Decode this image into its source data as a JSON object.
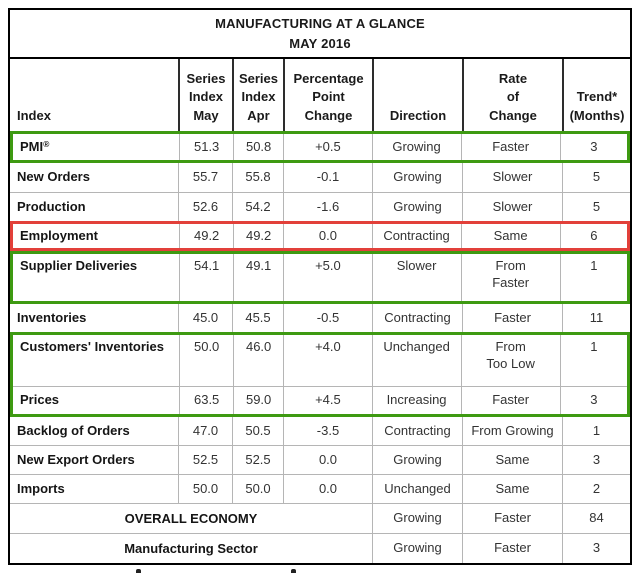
{
  "chart_data": {
    "type": "table",
    "title": "MANUFACTURING AT A GLANCE",
    "subtitle": "MAY 2016",
    "columns": [
      "Index",
      "Series\nIndex\nMay",
      "Series\nIndex\nApr",
      "Percentage\nPoint\nChange",
      "Direction",
      "Rate\nof\nChange",
      "Trend*\n(Months)"
    ],
    "rows": [
      {
        "name": "PMI",
        "sup": "®",
        "may": "51.3",
        "apr": "50.8",
        "change": "+0.5",
        "direction": "Growing",
        "rate": "Faster",
        "trend": "3",
        "highlight": "green"
      },
      {
        "name": "New Orders",
        "may": "55.7",
        "apr": "55.8",
        "change": "-0.1",
        "direction": "Growing",
        "rate": "Slower",
        "trend": "5",
        "highlight": "none"
      },
      {
        "name": "Production",
        "may": "52.6",
        "apr": "54.2",
        "change": "-1.6",
        "direction": "Growing",
        "rate": "Slower",
        "trend": "5",
        "highlight": "none"
      },
      {
        "name": "Employment",
        "may": "49.2",
        "apr": "49.2",
        "change": "0.0",
        "direction": "Contracting",
        "rate": "Same",
        "trend": "6",
        "highlight": "red"
      },
      {
        "name": "Supplier Deliveries",
        "may": "54.1",
        "apr": "49.1",
        "change": "+5.0",
        "direction": "Slower",
        "rate": "From",
        "rate2": "Faster",
        "trend": "1",
        "highlight": "green"
      },
      {
        "name": "Inventories",
        "may": "45.0",
        "apr": "45.5",
        "change": "-0.5",
        "direction": "Contracting",
        "rate": "Faster",
        "trend": "11",
        "highlight": "none"
      },
      {
        "name": "Customers' Inventories",
        "may": "50.0",
        "apr": "46.0",
        "change": "+4.0",
        "direction": "Unchanged",
        "rate": "From",
        "rate2": "Too Low",
        "trend": "1",
        "highlight": "green"
      },
      {
        "name": "Prices",
        "may": "63.5",
        "apr": "59.0",
        "change": "+4.5",
        "direction": "Increasing",
        "rate": "Faster",
        "trend": "3",
        "highlight": "green"
      },
      {
        "name": "Backlog of Orders",
        "may": "47.0",
        "apr": "50.5",
        "change": "-3.5",
        "direction": "Contracting",
        "rate": "From Growing",
        "trend": "1",
        "highlight": "none"
      },
      {
        "name": "New Export Orders",
        "may": "52.5",
        "apr": "52.5",
        "change": "0.0",
        "direction": "Growing",
        "rate": "Same",
        "trend": "3",
        "highlight": "none"
      },
      {
        "name": "Imports",
        "may": "50.0",
        "apr": "50.0",
        "change": "0.0",
        "direction": "Unchanged",
        "rate": "Same",
        "trend": "2",
        "highlight": "none"
      }
    ],
    "summary_rows": [
      {
        "label": "OVERALL ECONOMY",
        "direction": "Growing",
        "rate": "Faster",
        "trend": "84"
      },
      {
        "label": "Manufacturing Sector",
        "direction": "Growing",
        "rate": "Faster",
        "trend": "3"
      }
    ]
  },
  "colors": {
    "green_highlight": "#3e9a12",
    "red_highlight": "#e2403a",
    "frame": "#000000",
    "gridline": "#b5b5b5"
  }
}
